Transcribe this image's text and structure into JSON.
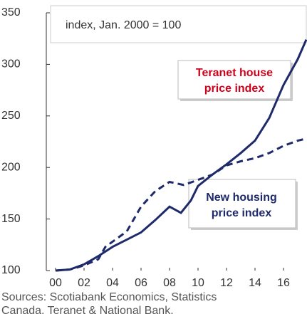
{
  "chart_data": {
    "type": "line",
    "annotations": [
      {
        "lines": [
          "index, Jan. 2000 = 100"
        ]
      },
      {
        "lines": [
          "Teranet house",
          "price index"
        ],
        "color": "#d0021b"
      },
      {
        "lines": [
          "New housing",
          "price index"
        ],
        "color": "#1f2a6b"
      }
    ],
    "source": [
      "Sources: Scotiabank Economics, Statistics",
      "Canada, Teranet & National Bank."
    ],
    "series": [
      {
        "name": "Teranet house price index",
        "color": "#1f2a6b",
        "dash": false,
        "x": [
          2000,
          2001,
          2002,
          2003,
          2004,
          2005,
          2006,
          2007,
          2008,
          2008.8,
          2009.5,
          2010,
          2011,
          2012,
          2013,
          2014,
          2015,
          2016,
          2017,
          2017.6
        ],
        "values": [
          100,
          101,
          106,
          114,
          123,
          130,
          137,
          149,
          162,
          156,
          168,
          182,
          193,
          203,
          214,
          226,
          248,
          280,
          305,
          324
        ]
      },
      {
        "name": "New housing price index",
        "color": "#1f2a6b",
        "dash": true,
        "x": [
          2000,
          2001,
          2002,
          2003,
          2003.5,
          2004,
          2005,
          2006,
          2007,
          2008,
          2009,
          2010,
          2011,
          2012,
          2013,
          2014,
          2015,
          2016,
          2017,
          2017.6
        ],
        "values": [
          100,
          101,
          105,
          111,
          123,
          128,
          138,
          162,
          177,
          186,
          183,
          188,
          193,
          202,
          206,
          209,
          214,
          221,
          226,
          228
        ]
      }
    ],
    "xlim": [
      1999.35,
      2017.65
    ],
    "ylim": [
      100,
      350
    ],
    "xticks": [
      {
        "value": 2000,
        "label": "00"
      },
      {
        "value": 2002,
        "label": "02"
      },
      {
        "value": 2004,
        "label": "04"
      },
      {
        "value": 2006,
        "label": "06"
      },
      {
        "value": 2008,
        "label": "08"
      },
      {
        "value": 2010,
        "label": "10"
      },
      {
        "value": 2012,
        "label": "12"
      },
      {
        "value": 2014,
        "label": "14"
      },
      {
        "value": 2016,
        "label": "16"
      }
    ],
    "yticks": [
      100,
      150,
      200,
      250,
      300,
      350
    ]
  }
}
